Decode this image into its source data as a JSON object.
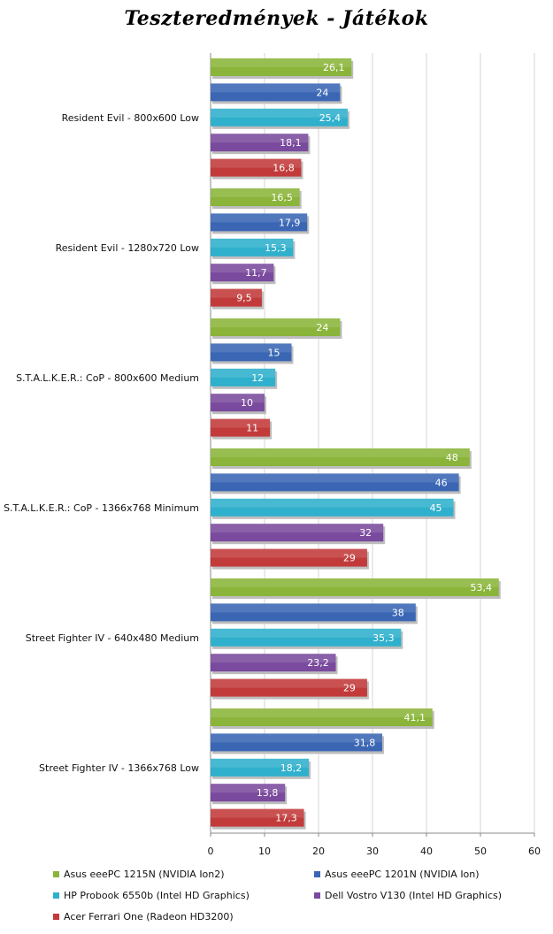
{
  "chart_data": {
    "type": "bar",
    "orientation": "horizontal",
    "title": "Teszteredmények - Játékok",
    "categories": [
      "Resident Evil - 800x600 Low",
      "Resident Evil - 1280x720 Low",
      "S.T.A.L.K.E.R.: CoP - 800x600 Medium",
      "S.T.A.L.K.E.R.: CoP - 1366x768 Minimum",
      "Street Fighter IV - 640x480 Medium",
      "Street Fighter IV - 1366x768 Low"
    ],
    "series": [
      {
        "name": "Asus eeePC 1215N (NVIDIA Ion2)",
        "color": "#8ab43a",
        "values": [
          26.1,
          16.5,
          24,
          48,
          53.4,
          41.1
        ],
        "labels": [
          "26,1",
          "16,5",
          "24",
          "48",
          "53,4",
          "41,1"
        ]
      },
      {
        "name": "Asus eeePC 1201N (NVIDIA Ion)",
        "color": "#3a66b4",
        "values": [
          24,
          17.9,
          15,
          46,
          38,
          31.8
        ],
        "labels": [
          "24",
          "17,9",
          "15",
          "46",
          "38",
          "31,8"
        ]
      },
      {
        "name": "HP Probook 6550b (Intel HD Graphics)",
        "color": "#2fb0cc",
        "values": [
          25.4,
          15.3,
          12,
          45,
          35.3,
          18.2
        ],
        "labels": [
          "25,4",
          "15,3",
          "12",
          "45",
          "35,3",
          "18,2"
        ]
      },
      {
        "name": "Dell Vostro V130 (Intel HD Graphics)",
        "color": "#7a4a9e",
        "values": [
          18.1,
          11.7,
          10,
          32,
          23.2,
          13.8
        ],
        "labels": [
          "18,1",
          "11,7",
          "10",
          "32",
          "23,2",
          "13,8"
        ]
      },
      {
        "name": "Acer Ferrari One (Radeon HD3200)",
        "color": "#c23a3a",
        "values": [
          16.8,
          9.5,
          11,
          29,
          29,
          17.3
        ],
        "labels": [
          "16,8",
          "9,5",
          "11",
          "29",
          "29",
          "17,3"
        ]
      }
    ],
    "xlim": [
      0,
      60
    ],
    "xticks": [
      0,
      10,
      20,
      30,
      40,
      50,
      60
    ],
    "grid": true,
    "legend_position": "bottom"
  }
}
